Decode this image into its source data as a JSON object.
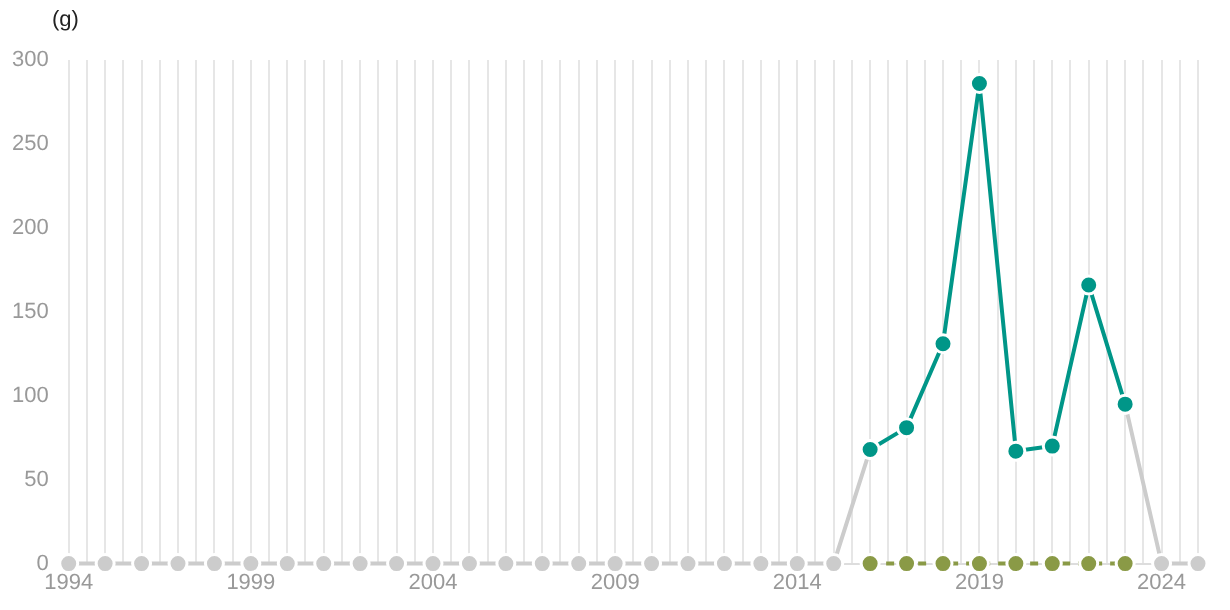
{
  "chart_data": {
    "type": "line",
    "ylabel": "(g)",
    "xlim": [
      1994,
      2025
    ],
    "xticks": [
      1994,
      {
        "value": 1994.5,
        "label": null
      },
      {
        "value": 1995,
        "label": null
      },
      {
        "value": 1995.5,
        "label": null
      },
      {
        "value": 1996,
        "label": null
      },
      {
        "value": 1996.5,
        "label": null
      },
      {
        "value": 1997,
        "label": null
      },
      {
        "value": 1997.5,
        "label": null
      },
      {
        "value": 1998,
        "label": null
      },
      {
        "value": 1998.5,
        "label": null
      },
      1999,
      {
        "value": 1999.5,
        "label": null
      },
      {
        "value": 2000,
        "label": null
      },
      {
        "value": 2000.5,
        "label": null
      },
      {
        "value": 2001,
        "label": null
      },
      {
        "value": 2001.5,
        "label": null
      },
      {
        "value": 2002,
        "label": null
      },
      {
        "value": 2002.5,
        "label": null
      },
      {
        "value": 2003,
        "label": null
      },
      {
        "value": 2003.5,
        "label": null
      },
      2004,
      {
        "value": 2004.5,
        "label": null
      },
      {
        "value": 2005,
        "label": null
      },
      {
        "value": 2005.5,
        "label": null
      },
      {
        "value": 2006,
        "label": null
      },
      {
        "value": 2006.5,
        "label": null
      },
      {
        "value": 2007,
        "label": null
      },
      {
        "value": 2007.5,
        "label": null
      },
      {
        "value": 2008,
        "label": null
      },
      {
        "value": 2008.5,
        "label": null
      },
      2009,
      {
        "value": 2009.5,
        "label": null
      },
      {
        "value": 2010,
        "label": null
      },
      {
        "value": 2010.5,
        "label": null
      },
      {
        "value": 2011,
        "label": null
      },
      {
        "value": 2011.5,
        "label": null
      },
      {
        "value": 2012,
        "label": null
      },
      {
        "value": 2012.5,
        "label": null
      },
      {
        "value": 2013,
        "label": null
      },
      {
        "value": 2013.5,
        "label": null
      },
      2014,
      {
        "value": 2014.5,
        "label": null
      },
      {
        "value": 2015,
        "label": null
      },
      {
        "value": 2015.5,
        "label": null
      },
      {
        "value": 2016,
        "label": null
      },
      {
        "value": 2016.5,
        "label": null
      },
      {
        "value": 2017,
        "label": null
      },
      {
        "value": 2017.5,
        "label": null
      },
      {
        "value": 2018,
        "label": null
      },
      {
        "value": 2018.5,
        "label": null
      },
      2019,
      {
        "value": 2019.5,
        "label": null
      },
      {
        "value": 2020,
        "label": null
      },
      {
        "value": 2020.5,
        "label": null
      },
      {
        "value": 2021,
        "label": null
      },
      {
        "value": 2021.5,
        "label": null
      },
      {
        "value": 2022,
        "label": null
      },
      {
        "value": 2022.5,
        "label": null
      },
      {
        "value": 2023,
        "label": null
      },
      {
        "value": 2023.5,
        "label": null
      },
      2024,
      {
        "value": 2024.5,
        "label": null
      },
      {
        "value": 2025,
        "label": null
      }
    ],
    "ylim": [
      0,
      300
    ],
    "yticks": [
      0,
      50,
      100,
      150,
      200,
      250,
      300
    ],
    "grid": "x",
    "legend": false,
    "marker": "circle",
    "series": [
      {
        "color": "#cccccc",
        "line_style": "solid",
        "x": [
          1994,
          1995,
          1996,
          1997,
          1998,
          1999,
          2000,
          2001,
          2002,
          2003,
          2004,
          2005,
          2006,
          2007,
          2008,
          2009,
          2010,
          2011,
          2012,
          2013,
          2014,
          2015,
          2016,
          2017,
          2018,
          2019,
          2020,
          2021,
          2022,
          2023,
          2024,
          2025
        ],
        "values": [
          0,
          0,
          0,
          0,
          0,
          0,
          0,
          0,
          0,
          0,
          0,
          0,
          0,
          0,
          0,
          0,
          0,
          0,
          0,
          0,
          0,
          0,
          68,
          null,
          null,
          null,
          null,
          null,
          null,
          95,
          0,
          0
        ]
      },
      {
        "color": "#8a9a46",
        "line_style": "dashed",
        "x": [
          2016,
          2017,
          2018,
          2019,
          2020,
          2021,
          2022,
          2023
        ],
        "values": [
          0,
          0,
          0,
          0,
          0,
          0,
          0,
          0
        ]
      },
      {
        "color": "#009688",
        "line_style": "solid",
        "x": [
          2016,
          2017,
          2018,
          2019,
          2020,
          2021,
          2022,
          2023
        ],
        "values": [
          68,
          81,
          131,
          286,
          67,
          70,
          166,
          95
        ]
      }
    ]
  }
}
